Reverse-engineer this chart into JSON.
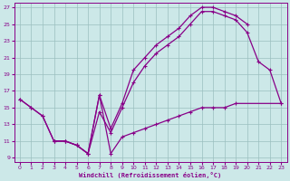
{
  "xlabel": "Windchill (Refroidissement éolien,°C)",
  "bg_color": "#cce8e8",
  "grid_color": "#9bbfbf",
  "line_color": "#880088",
  "xlim": [
    -0.5,
    23.5
  ],
  "ylim": [
    8.5,
    27.5
  ],
  "xticks": [
    0,
    1,
    2,
    3,
    4,
    5,
    6,
    7,
    8,
    9,
    10,
    11,
    12,
    13,
    14,
    15,
    16,
    17,
    18,
    19,
    20,
    21,
    22,
    23
  ],
  "yticks": [
    9,
    11,
    13,
    15,
    17,
    19,
    21,
    23,
    25,
    27
  ],
  "lineA_xy": [
    [
      0,
      16
    ],
    [
      1,
      15
    ],
    [
      2,
      14
    ],
    [
      3,
      11
    ],
    [
      4,
      11
    ],
    [
      5,
      10.5
    ],
    [
      6,
      9.5
    ],
    [
      7,
      14.5
    ],
    [
      8,
      12
    ],
    [
      9,
      15
    ],
    [
      10,
      18
    ],
    [
      11,
      20
    ],
    [
      12,
      21.5
    ],
    [
      13,
      22.5
    ],
    [
      14,
      23.5
    ],
    [
      15,
      25
    ],
    [
      16,
      26.5
    ],
    [
      17,
      26.5
    ],
    [
      18,
      26
    ],
    [
      19,
      25.5
    ],
    [
      20,
      24
    ],
    [
      21,
      20.5
    ],
    [
      22,
      19.5
    ],
    [
      23,
      15.5
    ]
  ],
  "lineB_xy": [
    [
      0,
      16
    ],
    [
      1,
      15
    ],
    [
      2,
      14
    ],
    [
      3,
      11
    ],
    [
      4,
      11
    ],
    [
      5,
      10.5
    ],
    [
      6,
      9.5
    ],
    [
      7,
      16.5
    ],
    [
      8,
      12.5
    ],
    [
      9,
      15.5
    ],
    [
      10,
      19.5
    ],
    [
      11,
      21
    ],
    [
      12,
      22.5
    ],
    [
      13,
      23.5
    ],
    [
      14,
      24.5
    ],
    [
      15,
      26
    ],
    [
      16,
      27
    ],
    [
      17,
      27
    ],
    [
      18,
      26.5
    ],
    [
      19,
      26
    ],
    [
      20,
      25
    ]
  ],
  "lineC_xy": [
    [
      3,
      11
    ],
    [
      4,
      11
    ],
    [
      5,
      10.5
    ],
    [
      6,
      9.5
    ],
    [
      7,
      16.5
    ],
    [
      8,
      9.5
    ],
    [
      9,
      11.5
    ],
    [
      10,
      12
    ],
    [
      11,
      12.5
    ],
    [
      12,
      13
    ],
    [
      13,
      13.5
    ],
    [
      14,
      14
    ],
    [
      15,
      14.5
    ],
    [
      16,
      15
    ],
    [
      17,
      15
    ],
    [
      18,
      15
    ],
    [
      19,
      15.5
    ],
    [
      23,
      15.5
    ]
  ]
}
